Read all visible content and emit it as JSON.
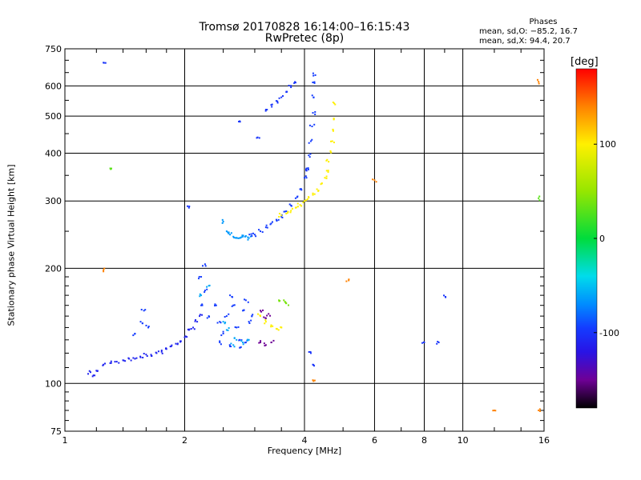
{
  "header": {
    "title_line1": "Tromsø 20170828 16:14:00–16:15:43",
    "title_line2": "RwPretec (8p)"
  },
  "phase_stats": {
    "heading": "Phases",
    "line_o": "mean, sd,O: −85.2, 16.7",
    "line_x": "mean, sd,X: 94.4, 20.7"
  },
  "colorbar": {
    "title": "[deg]",
    "range": [
      -180,
      180
    ],
    "ticks": [
      {
        "value": 100,
        "label": "100"
      },
      {
        "value": 0,
        "label": "0"
      },
      {
        "value": -100,
        "label": "-100"
      }
    ]
  },
  "chart_data": {
    "type": "scatter",
    "title": "Tromsø 20170828 16:14:00–16:15:43",
    "subtitle": "RwPretec (8p)",
    "xlabel": "Frequency [MHz]",
    "ylabel": "Stationary phase Virtual Height [km]",
    "x_scale": "log",
    "y_scale": "log",
    "xlim": [
      1,
      16
    ],
    "ylim": [
      75,
      750
    ],
    "grid": true,
    "x_ticks_major": [
      1,
      2,
      4,
      6,
      8,
      10,
      16
    ],
    "x_ticks_major_labels": [
      "1",
      "2",
      "4",
      "6",
      "8",
      "10",
      "16"
    ],
    "y_ticks_major": [
      75,
      100,
      200,
      300,
      400,
      500,
      600,
      750
    ],
    "y_ticks_major_labels": [
      "75",
      "100",
      "200",
      "300",
      "400",
      "500",
      "600",
      "750"
    ],
    "color_encoding": "phase (deg)",
    "traces": [
      {
        "group": "E-layer trace",
        "phase": -110,
        "points": [
          [
            1.16,
            107
          ],
          [
            1.18,
            105
          ],
          [
            1.2,
            108
          ],
          [
            1.25,
            112
          ],
          [
            1.3,
            113
          ],
          [
            1.35,
            114
          ],
          [
            1.4,
            115
          ],
          [
            1.45,
            116
          ],
          [
            1.5,
            116
          ],
          [
            1.55,
            117
          ],
          [
            1.6,
            119
          ],
          [
            1.65,
            118
          ],
          [
            1.7,
            120
          ],
          [
            1.75,
            121
          ],
          [
            1.8,
            123
          ],
          [
            1.85,
            125
          ],
          [
            1.9,
            127
          ],
          [
            1.95,
            129
          ],
          [
            2.0,
            132
          ],
          [
            2.05,
            138
          ],
          [
            2.1,
            140
          ],
          [
            2.15,
            145
          ],
          [
            2.18,
            150
          ]
        ]
      },
      {
        "group": "E-layer spread",
        "phase": -95,
        "points": [
          [
            1.5,
            135
          ],
          [
            1.55,
            145
          ],
          [
            1.58,
            155
          ],
          [
            1.62,
            140
          ],
          [
            2.2,
            160
          ],
          [
            2.25,
            175
          ],
          [
            2.2,
            190
          ],
          [
            2.25,
            205
          ],
          [
            2.3,
            150
          ],
          [
            2.4,
            160
          ],
          [
            2.45,
            145
          ],
          [
            2.5,
            135
          ],
          [
            2.55,
            150
          ],
          [
            2.6,
            170
          ],
          [
            2.65,
            160
          ],
          [
            2.7,
            140
          ],
          [
            2.75,
            130
          ],
          [
            2.8,
            155
          ],
          [
            2.85,
            165
          ],
          [
            2.9,
            145
          ],
          [
            2.95,
            150
          ],
          [
            2.45,
            128
          ],
          [
            2.6,
            125
          ],
          [
            2.75,
            124
          ],
          [
            2.85,
            128
          ]
        ]
      },
      {
        "group": "E-layer spread (cyan)",
        "phase": -60,
        "points": [
          [
            2.2,
            170
          ],
          [
            2.3,
            180
          ],
          [
            2.5,
            145
          ],
          [
            2.55,
            138
          ],
          [
            2.65,
            126
          ],
          [
            2.7,
            130
          ],
          [
            2.8,
            128
          ],
          [
            2.9,
            130
          ]
        ]
      },
      {
        "group": "E-layer spread (purple)",
        "phase": -150,
        "points": [
          [
            3.1,
            155
          ],
          [
            3.2,
            148
          ],
          [
            3.25,
            152
          ],
          [
            3.1,
            128
          ],
          [
            3.2,
            126
          ],
          [
            3.3,
            128
          ]
        ]
      },
      {
        "group": "E-layer X-mode",
        "phase": 100,
        "points": [
          [
            3.1,
            150
          ],
          [
            3.2,
            145
          ],
          [
            3.3,
            142
          ],
          [
            3.4,
            139
          ],
          [
            3.5,
            140
          ]
        ]
      },
      {
        "group": "E-layer X-mode (green)",
        "phase": 40,
        "points": [
          [
            3.45,
            165
          ],
          [
            3.55,
            165
          ],
          [
            3.6,
            162
          ]
        ]
      },
      {
        "group": "F-layer O-mode lower",
        "phase": -65,
        "points": [
          [
            2.5,
            265
          ],
          [
            2.55,
            250
          ],
          [
            2.6,
            245
          ],
          [
            2.65,
            242
          ],
          [
            2.7,
            240
          ],
          [
            2.75,
            240
          ],
          [
            2.8,
            242
          ],
          [
            2.85,
            243
          ],
          [
            2.9,
            240
          ]
        ]
      },
      {
        "group": "F-layer O-mode",
        "phase": -95,
        "points": [
          [
            2.95,
            243
          ],
          [
            3.0,
            245
          ],
          [
            3.1,
            250
          ],
          [
            3.2,
            256
          ],
          [
            3.3,
            262
          ],
          [
            3.4,
            268
          ],
          [
            3.5,
            273
          ],
          [
            3.6,
            282
          ],
          [
            3.7,
            292
          ],
          [
            3.8,
            305
          ],
          [
            3.9,
            322
          ],
          [
            4.0,
            345
          ],
          [
            4.05,
            365
          ],
          [
            4.1,
            395
          ],
          [
            4.15,
            430
          ],
          [
            4.18,
            470
          ],
          [
            4.2,
            510
          ],
          [
            4.22,
            560
          ],
          [
            4.24,
            610
          ],
          [
            4.26,
            640
          ]
        ]
      },
      {
        "group": "F-layer O-mode upper",
        "phase": -100,
        "points": [
          [
            3.2,
            520
          ],
          [
            3.3,
            535
          ],
          [
            3.4,
            548
          ],
          [
            3.5,
            560
          ],
          [
            3.6,
            578
          ],
          [
            3.7,
            595
          ],
          [
            3.8,
            612
          ]
        ]
      },
      {
        "group": "F-layer X-mode",
        "phase": 100,
        "points": [
          [
            3.5,
            275
          ],
          [
            3.6,
            278
          ],
          [
            3.7,
            283
          ],
          [
            3.8,
            288
          ],
          [
            3.9,
            293
          ],
          [
            4.0,
            300
          ],
          [
            4.1,
            306
          ],
          [
            4.2,
            314
          ],
          [
            4.3,
            322
          ],
          [
            4.4,
            332
          ],
          [
            4.5,
            345
          ],
          [
            4.55,
            360
          ],
          [
            4.6,
            380
          ],
          [
            4.65,
            405
          ],
          [
            4.7,
            430
          ],
          [
            4.72,
            460
          ],
          [
            4.74,
            490
          ],
          [
            4.75,
            540
          ]
        ]
      },
      {
        "group": "scattered",
        "phase": -100,
        "points": [
          [
            1.25,
            690
          ],
          [
            2.75,
            485
          ],
          [
            2.05,
            288
          ],
          [
            3.05,
            440
          ],
          [
            4.05,
            360
          ],
          [
            9.05,
            168
          ],
          [
            8.0,
            128
          ],
          [
            8.7,
            128
          ],
          [
            4.15,
            120
          ],
          [
            4.2,
            112
          ]
        ]
      },
      {
        "group": "scattered (warm)",
        "phase": 140,
        "points": [
          [
            1.25,
            198
          ],
          [
            4.2,
            102
          ],
          [
            5.1,
            185
          ],
          [
            6.0,
            340
          ],
          [
            12.0,
            85
          ],
          [
            15.5,
            85
          ],
          [
            15.5,
            615
          ]
        ]
      },
      {
        "group": "scattered (green)",
        "phase": 30,
        "points": [
          [
            1.3,
            365
          ],
          [
            15.5,
            305
          ]
        ]
      }
    ]
  }
}
